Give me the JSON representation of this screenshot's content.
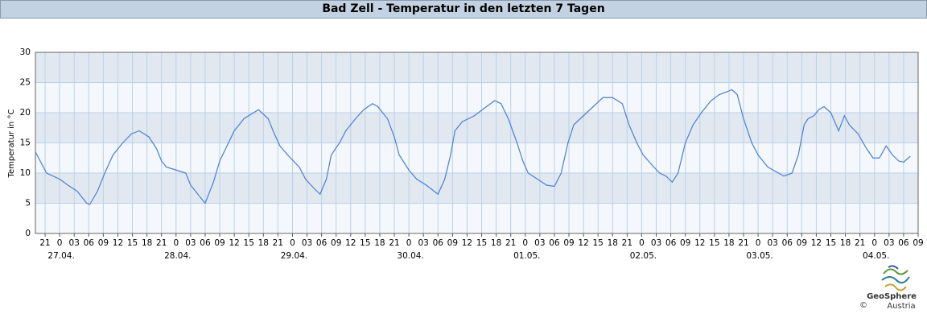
{
  "chart_data": {
    "type": "line",
    "title": "Bad Zell - Temperatur in den letzten 7 Tagen",
    "ylabel": "Temperatur in °C",
    "x": [
      -5,
      -2.7,
      0,
      1.7,
      3.6,
      4.6,
      5.6,
      6.2,
      7.8,
      9.3,
      11,
      13,
      14.8,
      16.4,
      18.4,
      20,
      21,
      22,
      24,
      26,
      27,
      29,
      30,
      31.7,
      33,
      34.8,
      36,
      38,
      41,
      43,
      44,
      45.4,
      47,
      49.4,
      50.7,
      52.4,
      53.7,
      55,
      56,
      57.7,
      59,
      61,
      62.7,
      64.5,
      65.6,
      67.6,
      69,
      70,
      72,
      73.6,
      75.6,
      77.2,
      78,
      79.4,
      80.6,
      81.5,
      83,
      85.5,
      88,
      89.7,
      91,
      92.5,
      94.3,
      95.5,
      96.6,
      98.5,
      100.4,
      102,
      103.4,
      104.8,
      106,
      108,
      110,
      112,
      114,
      116,
      117.4,
      119,
      120.3,
      122.5,
      123.7,
      125,
      126.3,
      127.5,
      129,
      130.6,
      132.3,
      134.3,
      136,
      137.7,
      138.6,
      139.7,
      141,
      142.7,
      144,
      146,
      148.2,
      149.3,
      151,
      152.3,
      153.5,
      154.3,
      155.5,
      156.5,
      157.6,
      159,
      160.6,
      161.8,
      162.8,
      164.6,
      166.4,
      167.7,
      169,
      170.4,
      171.7,
      173,
      174,
      175.4
    ],
    "series": [
      {
        "color": "#4a7fd6",
        "values": [
          13.5,
          10,
          9,
          8,
          7,
          6,
          5,
          4.8,
          7,
          10,
          13,
          15,
          16.5,
          17,
          16,
          14,
          12,
          11,
          10.5,
          10,
          8,
          6,
          5,
          8.5,
          12,
          15,
          17,
          19,
          20.5,
          19,
          17,
          14.5,
          13,
          11,
          9,
          7.5,
          6.5,
          9,
          13,
          15,
          17,
          19,
          20.5,
          21.5,
          21,
          19,
          16,
          13,
          10.5,
          9,
          8,
          7,
          6.5,
          9,
          13,
          17,
          18.5,
          19.5,
          21,
          22,
          21.5,
          19,
          15,
          12,
          10,
          9,
          8,
          7.8,
          10,
          15,
          18,
          19.5,
          21,
          22.5,
          22.5,
          21.5,
          18,
          15,
          13,
          11,
          10,
          9.5,
          8.5,
          10,
          15,
          18,
          20,
          22,
          23,
          23.5,
          23.8,
          23,
          19,
          15,
          13,
          11,
          10,
          9.5,
          10,
          13,
          18,
          19,
          19.5,
          20.5,
          21,
          20,
          17,
          19.5,
          18,
          16.5,
          14,
          12.5,
          12.5,
          14.5,
          13,
          12,
          11.8,
          12.8
        ]
      }
    ],
    "xlim": [
      -5,
      177
    ],
    "xticks": [
      {
        "value": -3,
        "label": "21"
      },
      {
        "value": 0,
        "label": "0"
      },
      {
        "value": 3,
        "label": "03"
      },
      {
        "value": 6,
        "label": "06"
      },
      {
        "value": 9,
        "label": "09"
      },
      {
        "value": 12,
        "label": "12"
      },
      {
        "value": 15,
        "label": "15"
      },
      {
        "value": 18,
        "label": "18"
      },
      {
        "value": 21,
        "label": "21"
      },
      {
        "value": 24,
        "label": "0"
      },
      {
        "value": 27,
        "label": "03"
      },
      {
        "value": 30,
        "label": "06"
      },
      {
        "value": 33,
        "label": "09"
      },
      {
        "value": 36,
        "label": "12"
      },
      {
        "value": 39,
        "label": "15"
      },
      {
        "value": 42,
        "label": "18"
      },
      {
        "value": 45,
        "label": "21"
      },
      {
        "value": 48,
        "label": "0"
      },
      {
        "value": 51,
        "label": "03"
      },
      {
        "value": 54,
        "label": "06"
      },
      {
        "value": 57,
        "label": "09"
      },
      {
        "value": 60,
        "label": "12"
      },
      {
        "value": 63,
        "label": "15"
      },
      {
        "value": 66,
        "label": "18"
      },
      {
        "value": 69,
        "label": "21"
      },
      {
        "value": 72,
        "label": "0"
      },
      {
        "value": 75,
        "label": "03"
      },
      {
        "value": 78,
        "label": "06"
      },
      {
        "value": 81,
        "label": "09"
      },
      {
        "value": 84,
        "label": "12"
      },
      {
        "value": 87,
        "label": "15"
      },
      {
        "value": 90,
        "label": "18"
      },
      {
        "value": 93,
        "label": "21"
      },
      {
        "value": 96,
        "label": "0"
      },
      {
        "value": 99,
        "label": "03"
      },
      {
        "value": 102,
        "label": "06"
      },
      {
        "value": 105,
        "label": "09"
      },
      {
        "value": 108,
        "label": "12"
      },
      {
        "value": 111,
        "label": "15"
      },
      {
        "value": 114,
        "label": "18"
      },
      {
        "value": 117,
        "label": "21"
      },
      {
        "value": 120,
        "label": "0"
      },
      {
        "value": 123,
        "label": "03"
      },
      {
        "value": 126,
        "label": "06"
      },
      {
        "value": 129,
        "label": "09"
      },
      {
        "value": 132,
        "label": "12"
      },
      {
        "value": 135,
        "label": "15"
      },
      {
        "value": 138,
        "label": "18"
      },
      {
        "value": 141,
        "label": "21"
      },
      {
        "value": 144,
        "label": "0"
      },
      {
        "value": 147,
        "label": "03"
      },
      {
        "value": 150,
        "label": "06"
      },
      {
        "value": 153,
        "label": "09"
      },
      {
        "value": 156,
        "label": "12"
      },
      {
        "value": 159,
        "label": "15"
      },
      {
        "value": 162,
        "label": "18"
      },
      {
        "value": 165,
        "label": "21"
      },
      {
        "value": 168,
        "label": "0"
      },
      {
        "value": 171,
        "label": "03"
      },
      {
        "value": 174,
        "label": "06"
      },
      {
        "value": 177,
        "label": "09"
      }
    ],
    "date_ticks": [
      {
        "value": 0,
        "label": "27.04."
      },
      {
        "value": 24,
        "label": "28.04."
      },
      {
        "value": 48,
        "label": "29.04."
      },
      {
        "value": 72,
        "label": "30.04."
      },
      {
        "value": 96,
        "label": "01.05."
      },
      {
        "value": 120,
        "label": "02.05."
      },
      {
        "value": 144,
        "label": "03.05."
      },
      {
        "value": 168,
        "label": "04.05."
      }
    ],
    "ylim": [
      0,
      30
    ],
    "yticks": [
      0,
      5,
      10,
      15,
      20,
      25,
      30
    ],
    "grid": true,
    "logo": {
      "name": "GeoSphere",
      "sub": "Austria",
      "copyright": "©"
    }
  }
}
